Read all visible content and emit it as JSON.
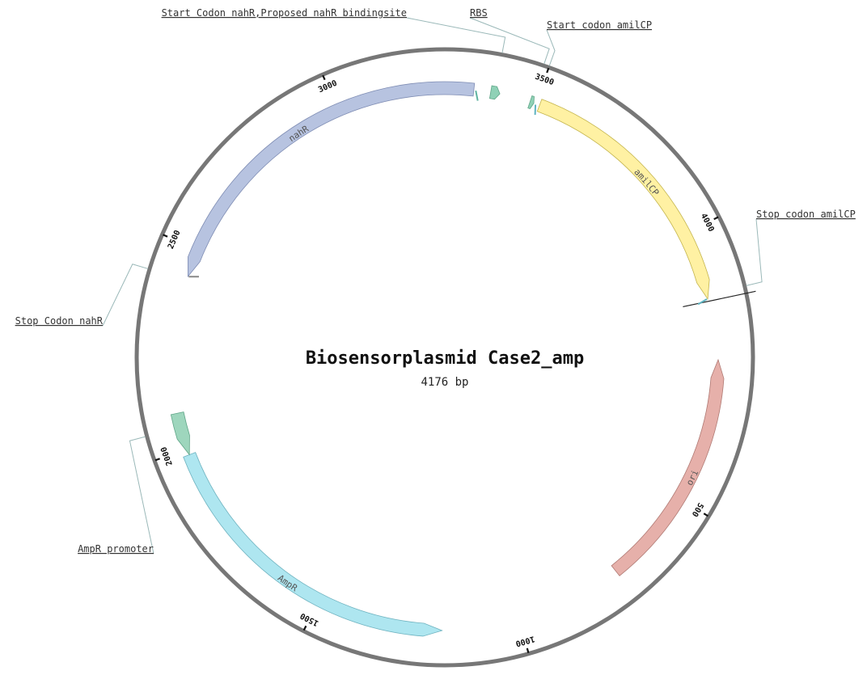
{
  "map": {
    "name": "Biosensorplasmid Case2_amp",
    "length_label": "4176 bp",
    "length_bp": 4176
  },
  "ticks": [
    {
      "bp": 500,
      "label": "500"
    },
    {
      "bp": 1000,
      "label": "1000"
    },
    {
      "bp": 1500,
      "label": "1500"
    },
    {
      "bp": 2000,
      "label": "2000"
    },
    {
      "bp": 2500,
      "label": "2500"
    },
    {
      "bp": 3000,
      "label": "3000"
    },
    {
      "bp": 3500,
      "label": "3500"
    },
    {
      "bp": 4000,
      "label": "4000"
    }
  ],
  "features": [
    {
      "id": "amilcp",
      "label": "amilCP",
      "start": 3510,
      "end": 4170,
      "track": 0,
      "strand": 1,
      "color": "#fff1a3",
      "stroke": "#c4b44c"
    },
    {
      "id": "ori",
      "label": "ori",
      "start": 145,
      "end": 735,
      "track": 1,
      "strand": -1,
      "color": "#e6b0aa",
      "stroke": "#b07a74"
    },
    {
      "id": "ampr",
      "label": "AmpR",
      "start": 1190,
      "end": 1985,
      "track": 1,
      "strand": -1,
      "color": "#aee6f0",
      "stroke": "#6fb3c0"
    },
    {
      "id": "ampr-promoter",
      "label": "",
      "start": 1985,
      "end": 2090,
      "track": 1,
      "strand": -1,
      "color": "#9ed6bd",
      "stroke": "#5fa587"
    },
    {
      "id": "nahr",
      "label": "nahR",
      "start": 2430,
      "end": 3343,
      "track": 0,
      "strand": -1,
      "color": "#b7c3e0",
      "stroke": "#7e8cb3"
    },
    {
      "id": "nahr-binding",
      "label": "",
      "start": 3385,
      "end": 3408,
      "track": 0,
      "strand": 1,
      "color": "#8fd1b6",
      "stroke": "#5fa587"
    },
    {
      "id": "rbs",
      "label": "",
      "start": 3485,
      "end": 3495,
      "track": 0,
      "strand": 1,
      "color": "#8fd1b6",
      "stroke": "#5fa587"
    }
  ],
  "small_marks": [
    {
      "id": "mark-start-nahr",
      "bp": 3348,
      "track": 1,
      "color": "#5fb3a0"
    },
    {
      "id": "mark-start-amilcp",
      "bp": 3500,
      "track": 1,
      "color": "#5fb3c0"
    },
    {
      "id": "mark-stop-amilcp",
      "bp": 4170,
      "track": 1,
      "color": "#5fb3c0"
    },
    {
      "id": "mark-stop-nahr",
      "bp": 2430,
      "track": 1,
      "color": "#888888"
    }
  ],
  "annotations": [
    {
      "id": "ann-start-codon-nahr",
      "label": "Start Codon nahR,Proposed nahR bindingsite",
      "bp": 3395,
      "anchor": "end"
    },
    {
      "id": "ann-rbs",
      "label": "RBS",
      "bp": 3488,
      "anchor": "start"
    },
    {
      "id": "ann-start-codon-amilcp",
      "label": "Start codon amilCP",
      "bp": 3500,
      "anchor": "start"
    },
    {
      "id": "ann-stop-codon-amilcp",
      "label": "Stop codon amilCP",
      "bp": 4160,
      "anchor": "start"
    },
    {
      "id": "ann-stop-codon-nahr",
      "label": "Stop Codon nahR",
      "bp": 2420,
      "anchor": "end"
    },
    {
      "id": "ann-ampr-promoter",
      "label": "AmpR promoter",
      "bp": 2055,
      "anchor": "end"
    }
  ]
}
